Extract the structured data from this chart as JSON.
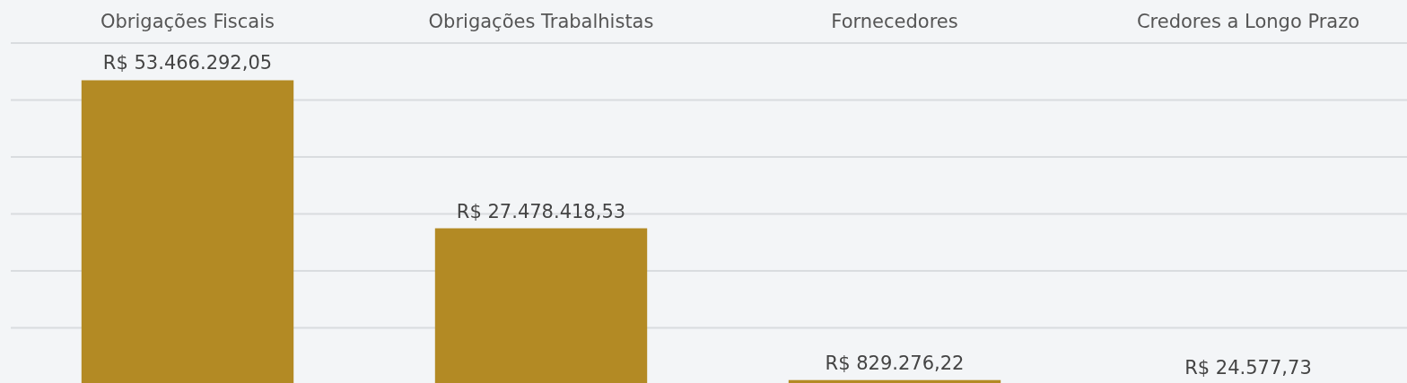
{
  "chart_data": {
    "type": "bar",
    "categories": [
      "Obrigações Fiscais",
      "Obrigações Trabalhistas",
      "Fornecedores",
      "Credores a Longo Prazo"
    ],
    "values": [
      53466292.05,
      27478418.53,
      829276.22,
      24577.73
    ],
    "value_labels": [
      "R$ 53.466.292,05",
      "R$ 27.478.418,53",
      "R$ 829.276,22",
      "R$ 24.577,73"
    ],
    "color": "#b38a24",
    "ylim": [
      0,
      60000000
    ],
    "yticks": [
      {
        "value": 10000000,
        "label": null
      },
      {
        "value": 20000000,
        "label": null
      },
      {
        "value": 30000000,
        "label": null
      },
      {
        "value": 40000000,
        "label": null
      },
      {
        "value": 50000000,
        "label": null
      },
      {
        "value": 60000000,
        "label": null
      }
    ],
    "grid": "y",
    "tick_labels": "x"
  }
}
